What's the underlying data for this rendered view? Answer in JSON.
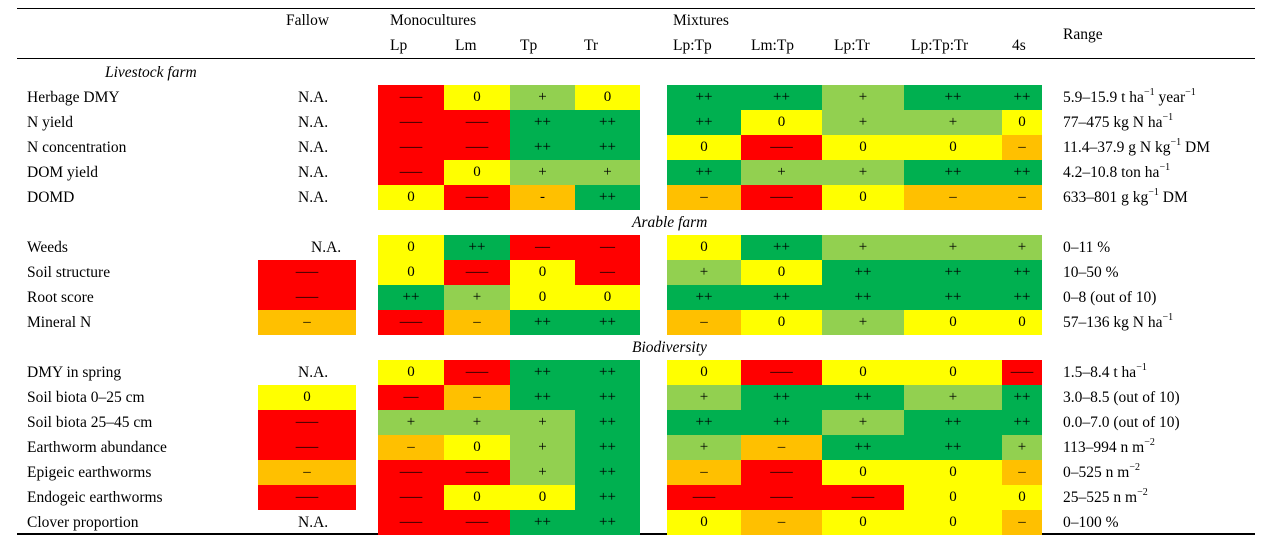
{
  "colors": {
    "red": "#ff0000",
    "yellow": "#ffff00",
    "lightgreen": "#92d050",
    "darkgreen": "#00b050",
    "orange": "#ffc000"
  },
  "header": {
    "fallow": "Fallow",
    "monocultures": "Monocultures",
    "mixtures": "Mixtures",
    "range": "Range",
    "cols": [
      "Lp",
      "Lm",
      "Tp",
      "Tr",
      "Lp:Tp",
      "Lm:Tp",
      "Lp:Tr",
      "Lp:Tp:Tr",
      "4s"
    ]
  },
  "sections": [
    {
      "title": "Livestock farm",
      "rows": [
        {
          "label": "Herbage DMY",
          "fallow": "N.A.",
          "fallow_color": null,
          "cells": [
            [
              "–––",
              "red"
            ],
            [
              "0",
              "yellow"
            ],
            [
              "+",
              "lightgreen"
            ],
            [
              "0",
              "yellow"
            ],
            [
              "++",
              "darkgreen"
            ],
            [
              "++",
              "darkgreen"
            ],
            [
              "+",
              "lightgreen"
            ],
            [
              "++",
              "darkgreen"
            ],
            [
              "++",
              "darkgreen"
            ]
          ],
          "range": {
            "pre": "5.9–15.9 t ha",
            "sup1": "−1",
            "mid": " year",
            "sup2": "−1",
            "post": ""
          }
        },
        {
          "label": "N yield",
          "fallow": "N.A.",
          "fallow_color": null,
          "cells": [
            [
              "–––",
              "red"
            ],
            [
              "–––",
              "red"
            ],
            [
              "++",
              "darkgreen"
            ],
            [
              "++",
              "darkgreen"
            ],
            [
              "++",
              "darkgreen"
            ],
            [
              "0",
              "yellow"
            ],
            [
              "+",
              "lightgreen"
            ],
            [
              "+",
              "lightgreen"
            ],
            [
              "0",
              "yellow"
            ]
          ],
          "range": {
            "pre": "77–475 kg N ha",
            "sup1": "−1",
            "mid": "",
            "sup2": "",
            "post": ""
          }
        },
        {
          "label": "N concentration",
          "fallow": "N.A.",
          "fallow_color": null,
          "cells": [
            [
              "–––",
              "red"
            ],
            [
              "–––",
              "red"
            ],
            [
              "++",
              "darkgreen"
            ],
            [
              "++",
              "darkgreen"
            ],
            [
              "0",
              "yellow"
            ],
            [
              "–––",
              "red"
            ],
            [
              "0",
              "yellow"
            ],
            [
              "0",
              "yellow"
            ],
            [
              "–",
              "orange"
            ]
          ],
          "range": {
            "pre": "11.4–37.9 g N kg",
            "sup1": "−1",
            "mid": " DM",
            "sup2": "",
            "post": ""
          }
        },
        {
          "label": "DOM yield",
          "fallow": "N.A.",
          "fallow_color": null,
          "cells": [
            [
              "–––",
              "red"
            ],
            [
              "0",
              "yellow"
            ],
            [
              "+",
              "lightgreen"
            ],
            [
              "+",
              "lightgreen"
            ],
            [
              "++",
              "darkgreen"
            ],
            [
              "+",
              "lightgreen"
            ],
            [
              "+",
              "lightgreen"
            ],
            [
              "++",
              "darkgreen"
            ],
            [
              "++",
              "darkgreen"
            ]
          ],
          "range": {
            "pre": "4.2–10.8 ton ha",
            "sup1": "−1",
            "mid": "",
            "sup2": "",
            "post": ""
          }
        },
        {
          "label": "DOMD",
          "fallow": "N.A.",
          "fallow_color": null,
          "cells": [
            [
              "0",
              "yellow"
            ],
            [
              "–––",
              "red"
            ],
            [
              "-",
              "orange"
            ],
            [
              "++",
              "darkgreen"
            ],
            [
              "–",
              "orange"
            ],
            [
              "–––",
              "red"
            ],
            [
              "0",
              "yellow"
            ],
            [
              "–",
              "orange"
            ],
            [
              "–",
              "orange"
            ]
          ],
          "range": {
            "pre": "633–801 g kg",
            "sup1": "−1",
            "mid": " DM",
            "sup2": "",
            "post": ""
          }
        }
      ]
    },
    {
      "title": "Arable farm",
      "rows": [
        {
          "label": "Weeds",
          "fallow": "N.A.",
          "fallow_color": null,
          "cells": [
            [
              "0",
              "yellow"
            ],
            [
              "++",
              "darkgreen"
            ],
            [
              "––",
              "red"
            ],
            [
              "––",
              "red"
            ],
            [
              "0",
              "yellow"
            ],
            [
              "++",
              "darkgreen"
            ],
            [
              "+",
              "lightgreen"
            ],
            [
              "+",
              "lightgreen"
            ],
            [
              "+",
              "lightgreen"
            ]
          ],
          "range": {
            "pre": "0–11 %",
            "sup1": "",
            "mid": "",
            "sup2": "",
            "post": ""
          }
        },
        {
          "label": "Soil structure",
          "fallow": "–––",
          "fallow_color": "red",
          "cells": [
            [
              "0",
              "yellow"
            ],
            [
              "–––",
              "red"
            ],
            [
              "0",
              "yellow"
            ],
            [
              "––",
              "red"
            ],
            [
              "+",
              "lightgreen"
            ],
            [
              "0",
              "yellow"
            ],
            [
              "++",
              "darkgreen"
            ],
            [
              "++",
              "darkgreen"
            ],
            [
              "++",
              "darkgreen"
            ]
          ],
          "range": {
            "pre": "10–50 %",
            "sup1": "",
            "mid": "",
            "sup2": "",
            "post": ""
          }
        },
        {
          "label": "Root score",
          "fallow": "–––",
          "fallow_color": "red",
          "cells": [
            [
              "++",
              "darkgreen"
            ],
            [
              "+",
              "lightgreen"
            ],
            [
              "0",
              "yellow"
            ],
            [
              "0",
              "yellow"
            ],
            [
              "++",
              "darkgreen"
            ],
            [
              "++",
              "darkgreen"
            ],
            [
              "++",
              "darkgreen"
            ],
            [
              "++",
              "darkgreen"
            ],
            [
              "++",
              "darkgreen"
            ]
          ],
          "range": {
            "pre": "0–8 (out of 10)",
            "sup1": "",
            "mid": "",
            "sup2": "",
            "post": ""
          }
        },
        {
          "label": "Mineral N",
          "fallow": "–",
          "fallow_color": "orange",
          "cells": [
            [
              "–––",
              "red"
            ],
            [
              "–",
              "orange"
            ],
            [
              "++",
              "darkgreen"
            ],
            [
              "++",
              "darkgreen"
            ],
            [
              "–",
              "orange"
            ],
            [
              "0",
              "yellow"
            ],
            [
              "+",
              "lightgreen"
            ],
            [
              "0",
              "yellow"
            ],
            [
              "0",
              "yellow"
            ]
          ],
          "range": {
            "pre": "57–136 kg N ha",
            "sup1": "−1",
            "mid": "",
            "sup2": "",
            "post": ""
          }
        }
      ]
    },
    {
      "title": "Biodiversity",
      "rows": [
        {
          "label": "DMY in spring",
          "fallow": "N.A.",
          "fallow_color": null,
          "cells": [
            [
              "0",
              "yellow"
            ],
            [
              "–––",
              "red"
            ],
            [
              "++",
              "darkgreen"
            ],
            [
              "++",
              "darkgreen"
            ],
            [
              "0",
              "yellow"
            ],
            [
              "–––",
              "red"
            ],
            [
              "0",
              "yellow"
            ],
            [
              "0",
              "yellow"
            ],
            [
              "–––",
              "red"
            ]
          ],
          "range": {
            "pre": "1.5–8.4 t ha",
            "sup1": "−1",
            "mid": "",
            "sup2": "",
            "post": ""
          }
        },
        {
          "label": "Soil biota 0–25 cm",
          "fallow": "0",
          "fallow_color": "yellow",
          "cells": [
            [
              "––",
              "red"
            ],
            [
              "–",
              "orange"
            ],
            [
              "++",
              "darkgreen"
            ],
            [
              "++",
              "darkgreen"
            ],
            [
              "+",
              "lightgreen"
            ],
            [
              "++",
              "darkgreen"
            ],
            [
              "++",
              "darkgreen"
            ],
            [
              "+",
              "lightgreen"
            ],
            [
              "++",
              "darkgreen"
            ]
          ],
          "range": {
            "pre": "3.0–8.5 (out of 10)",
            "sup1": "",
            "mid": "",
            "sup2": "",
            "post": ""
          }
        },
        {
          "label": "Soil biota 25–45 cm",
          "fallow": "–––",
          "fallow_color": "red",
          "cells": [
            [
              "+",
              "lightgreen"
            ],
            [
              "+",
              "lightgreen"
            ],
            [
              "+",
              "lightgreen"
            ],
            [
              "++",
              "darkgreen"
            ],
            [
              "++",
              "darkgreen"
            ],
            [
              "++",
              "darkgreen"
            ],
            [
              "+",
              "lightgreen"
            ],
            [
              "++",
              "darkgreen"
            ],
            [
              "++",
              "darkgreen"
            ]
          ],
          "range": {
            "pre": "0.0–7.0 (out of 10)",
            "sup1": "",
            "mid": "",
            "sup2": "",
            "post": ""
          }
        },
        {
          "label": "Earthworm abundance",
          "fallow": "–––",
          "fallow_color": "red",
          "cells": [
            [
              "–",
              "orange"
            ],
            [
              "0",
              "yellow"
            ],
            [
              "+",
              "lightgreen"
            ],
            [
              "++",
              "darkgreen"
            ],
            [
              "+",
              "lightgreen"
            ],
            [
              "–",
              "orange"
            ],
            [
              "++",
              "darkgreen"
            ],
            [
              "++",
              "darkgreen"
            ],
            [
              "+",
              "lightgreen"
            ]
          ],
          "range": {
            "pre": "113–994 n m",
            "sup1": "−2",
            "mid": "",
            "sup2": "",
            "post": ""
          }
        },
        {
          "label": "Epigeic earthworms",
          "fallow": "–",
          "fallow_color": "orange",
          "cells": [
            [
              "–––",
              "red"
            ],
            [
              "–––",
              "red"
            ],
            [
              "+",
              "lightgreen"
            ],
            [
              "++",
              "darkgreen"
            ],
            [
              "–",
              "orange"
            ],
            [
              "–––",
              "red"
            ],
            [
              "0",
              "yellow"
            ],
            [
              "0",
              "yellow"
            ],
            [
              "–",
              "orange"
            ]
          ],
          "range": {
            "pre": "0–525 n m",
            "sup1": "−2",
            "mid": "",
            "sup2": "",
            "post": ""
          }
        },
        {
          "label": "Endogeic earthworms",
          "fallow": "–––",
          "fallow_color": "red",
          "cells": [
            [
              "–––",
              "red"
            ],
            [
              "0",
              "yellow"
            ],
            [
              "0",
              "yellow"
            ],
            [
              "++",
              "darkgreen"
            ],
            [
              "–––",
              "red"
            ],
            [
              "–––",
              "red"
            ],
            [
              "–––",
              "red"
            ],
            [
              "0",
              "yellow"
            ],
            [
              "0",
              "yellow"
            ]
          ],
          "range": {
            "pre": "25–525 n m",
            "sup1": "−2",
            "mid": "",
            "sup2": "",
            "post": ""
          }
        },
        {
          "label": "Clover proportion",
          "fallow": "N.A.",
          "fallow_color": null,
          "cells": [
            [
              "–––",
              "red"
            ],
            [
              "–––",
              "red"
            ],
            [
              "++",
              "darkgreen"
            ],
            [
              "++",
              "darkgreen"
            ],
            [
              "0",
              "yellow"
            ],
            [
              "–",
              "orange"
            ],
            [
              "0",
              "yellow"
            ],
            [
              "0",
              "yellow"
            ],
            [
              "–",
              "orange"
            ]
          ],
          "range": {
            "pre": "0–100 %",
            "sup1": "",
            "mid": "",
            "sup2": "",
            "post": ""
          }
        }
      ]
    }
  ]
}
